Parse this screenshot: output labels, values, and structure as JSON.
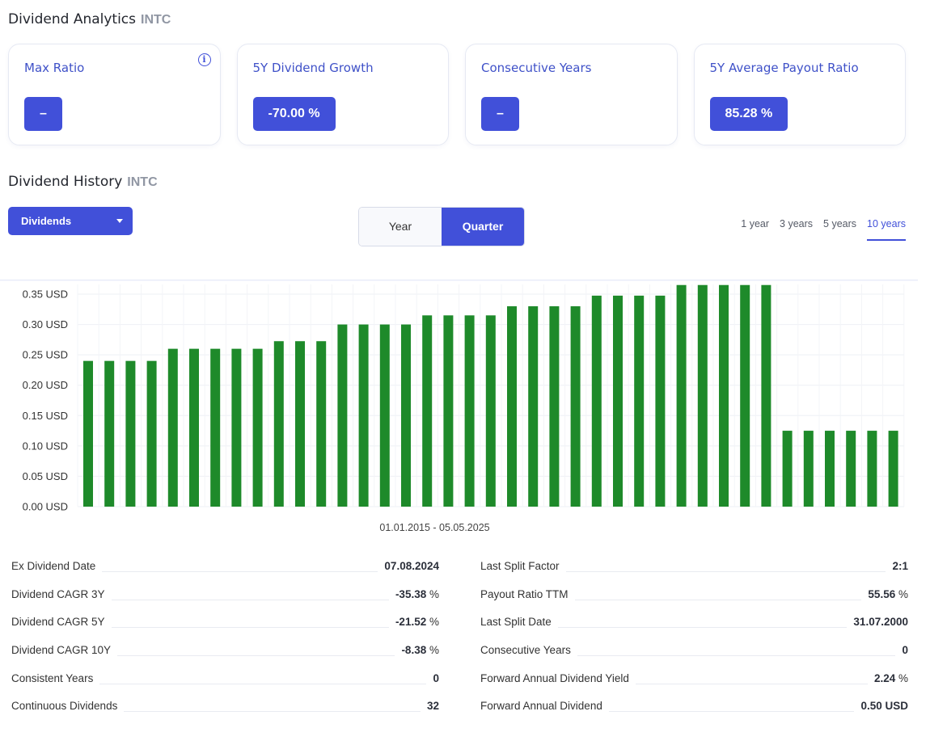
{
  "analytics": {
    "title": "Dividend Analytics",
    "ticker": "INTC",
    "cards": [
      {
        "label": "Max Ratio",
        "value": "–",
        "has_info": true
      },
      {
        "label": "5Y Dividend Growth",
        "value": "-70.00 %"
      },
      {
        "label": "Consecutive Years",
        "value": "–"
      },
      {
        "label": "5Y Average Payout Ratio",
        "value": "85.28 %"
      }
    ],
    "info_icon": "info-icon"
  },
  "history": {
    "title": "Dividend History",
    "ticker": "INTC",
    "dropdown": {
      "selected": "Dividends",
      "icon": "caret-down-icon"
    },
    "toggle": {
      "year": "Year",
      "quarter": "Quarter",
      "active": "Quarter"
    },
    "ranges": [
      "1 year",
      "3 years",
      "5 years",
      "10 years"
    ],
    "active_range": "10 years"
  },
  "chart_data": {
    "type": "bar",
    "xlabel": "01.01.2015 - 05.05.2025",
    "ylim": [
      0,
      0.35
    ],
    "y_ticks": [
      "0.00 USD",
      "0.05 USD",
      "0.10 USD",
      "0.15 USD",
      "0.20 USD",
      "0.25 USD",
      "0.30 USD",
      "0.35 USD"
    ],
    "bar_color": "#1e8a2a",
    "values": [
      0.24,
      0.24,
      0.24,
      0.24,
      0.26,
      0.26,
      0.26,
      0.26,
      0.26,
      0.2725,
      0.2725,
      0.2725,
      0.3,
      0.3,
      0.3,
      0.3,
      0.315,
      0.315,
      0.315,
      0.315,
      0.33,
      0.33,
      0.33,
      0.33,
      0.3475,
      0.3475,
      0.3475,
      0.3475,
      0.365,
      0.365,
      0.365,
      0.365,
      0.365,
      0.125,
      0.125,
      0.125,
      0.125,
      0.125,
      0.125
    ]
  },
  "stats": {
    "left": [
      {
        "label": "Ex Dividend Date",
        "value": "07.08.2024",
        "unit": ""
      },
      {
        "label": "Dividend CAGR 3Y",
        "value": "-35.38",
        "unit": "%"
      },
      {
        "label": "Dividend CAGR 5Y",
        "value": "-21.52",
        "unit": "%"
      },
      {
        "label": "Dividend CAGR 10Y",
        "value": "-8.38",
        "unit": "%"
      },
      {
        "label": "Consistent Years",
        "value": "0",
        "unit": ""
      },
      {
        "label": "Continuous Dividends",
        "value": "32",
        "unit": ""
      }
    ],
    "right": [
      {
        "label": "Last Split Factor",
        "value": "2:1",
        "unit": ""
      },
      {
        "label": "Payout Ratio TTM",
        "value": "55.56",
        "unit": "%"
      },
      {
        "label": "Last Split Date",
        "value": "31.07.2000",
        "unit": ""
      },
      {
        "label": "Consecutive Years",
        "value": "0",
        "unit": ""
      },
      {
        "label": "Forward Annual Dividend Yield",
        "value": "2.24",
        "unit": "%"
      },
      {
        "label": "Forward Annual Dividend",
        "value": "0.50 USD",
        "unit": ""
      }
    ]
  }
}
